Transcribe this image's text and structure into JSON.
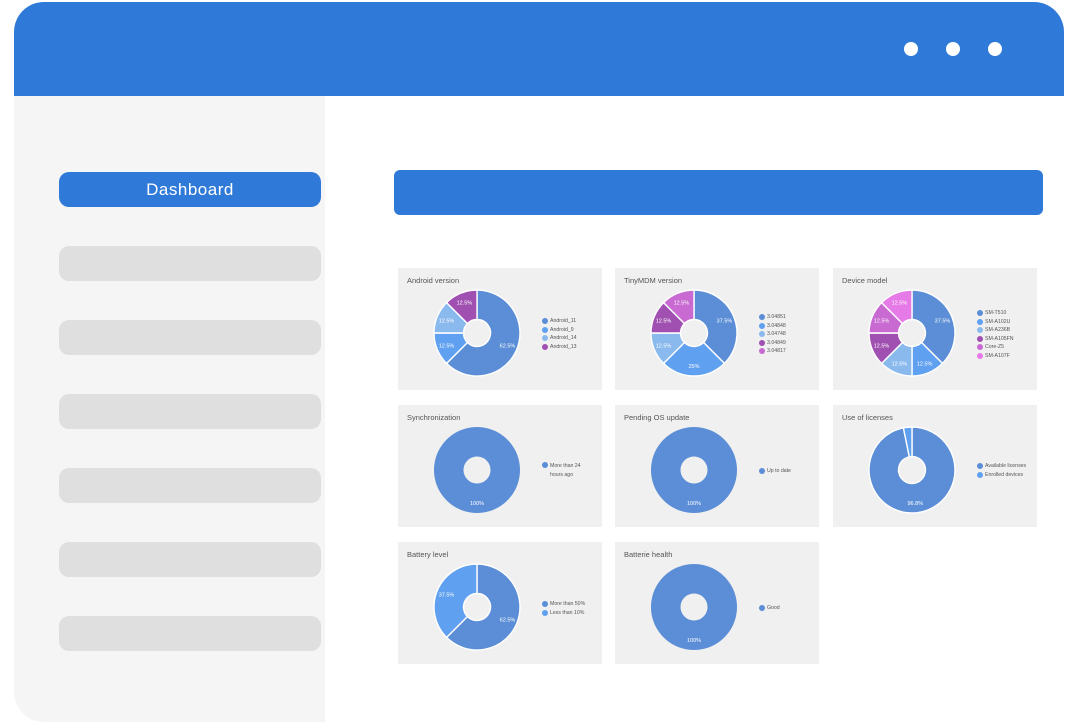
{
  "window": {
    "controls": [
      "dot",
      "dot",
      "dot"
    ]
  },
  "sidebar": {
    "items": [
      {
        "label": "Dashboard",
        "active": true
      },
      {
        "label": ""
      },
      {
        "label": ""
      },
      {
        "label": ""
      },
      {
        "label": ""
      },
      {
        "label": ""
      },
      {
        "label": ""
      }
    ]
  },
  "colors": {
    "accent": "#2f7ad8",
    "sidebar_bg": "#f5f5f5",
    "placeholder": "#dfdfdf",
    "card_bg": "#f0f0f0"
  },
  "chart_data": [
    {
      "type": "pie",
      "title": "Android version",
      "slices": [
        {
          "name": "Android_11",
          "value": 62.5,
          "label": "62.5%",
          "color": "#5b8ed6"
        },
        {
          "name": "Android_9",
          "value": 12.5,
          "label": "12.5%",
          "color": "#5fa0f0"
        },
        {
          "name": "Android_14",
          "value": 12.5,
          "label": "12.5%",
          "color": "#8ab9ee"
        },
        {
          "name": "Android_13",
          "value": 12.5,
          "label": "12.5%",
          "color": "#a050b0"
        }
      ]
    },
    {
      "type": "pie",
      "title": "TinyMDM version",
      "slices": [
        {
          "name": "3.04851",
          "value": 37.5,
          "label": "37.5%",
          "color": "#5b8ed6"
        },
        {
          "name": "3.04848",
          "value": 25,
          "label": "25%",
          "color": "#5fa0f0"
        },
        {
          "name": "3.04748",
          "value": 12.5,
          "label": "12.5%",
          "color": "#8ab9ee"
        },
        {
          "name": "3.04849",
          "value": 12.5,
          "label": "12.5%",
          "color": "#a050b0"
        },
        {
          "name": "3.04817",
          "value": 12.5,
          "label": "12.5%",
          "color": "#c86ad2"
        }
      ]
    },
    {
      "type": "pie",
      "title": "Device model",
      "slices": [
        {
          "name": "SM-T510",
          "value": 37.5,
          "label": "37.5%",
          "color": "#5b8ed6"
        },
        {
          "name": "SM-A102U",
          "value": 12.5,
          "label": "12.5%",
          "color": "#5fa0f0"
        },
        {
          "name": "SM-A236B",
          "value": 12.5,
          "label": "12.5%",
          "color": "#8ab9ee"
        },
        {
          "name": "SM-A105FN",
          "value": 12.5,
          "label": "12.5%",
          "color": "#a050b0"
        },
        {
          "name": "Core-Z5",
          "value": 12.5,
          "label": "12.5%",
          "color": "#c86ad2"
        },
        {
          "name": "SM-A107F",
          "value": 12.5,
          "label": "12.5%",
          "color": "#e67ae6"
        }
      ]
    },
    {
      "type": "pie",
      "title": "Synchronization",
      "slices": [
        {
          "name": "More than 24 hours ago",
          "value": 100,
          "label": "100%",
          "color": "#5b8ed6"
        }
      ]
    },
    {
      "type": "pie",
      "title": "Pending OS update",
      "slices": [
        {
          "name": "Up to date",
          "value": 100,
          "label": "100%",
          "color": "#5b8ed6"
        }
      ]
    },
    {
      "type": "pie",
      "title": "Use of licenses",
      "slices": [
        {
          "name": "Available licenses",
          "value": 96.8,
          "label": "96.8%",
          "color": "#5b8ed6"
        },
        {
          "name": "Enrolled devices",
          "value": 3.2,
          "label": "",
          "color": "#5fa0f0"
        }
      ]
    },
    {
      "type": "pie",
      "title": "Battery level",
      "slices": [
        {
          "name": "More than 50%",
          "value": 62.5,
          "label": "62.5%",
          "color": "#5b8ed6"
        },
        {
          "name": "Less than 10%",
          "value": 37.5,
          "label": "37.5%",
          "color": "#5fa0f0"
        }
      ]
    },
    {
      "type": "pie",
      "title": "Batterie health",
      "slices": [
        {
          "name": "Good",
          "value": 100,
          "label": "100%",
          "color": "#5b8ed6"
        }
      ]
    }
  ]
}
